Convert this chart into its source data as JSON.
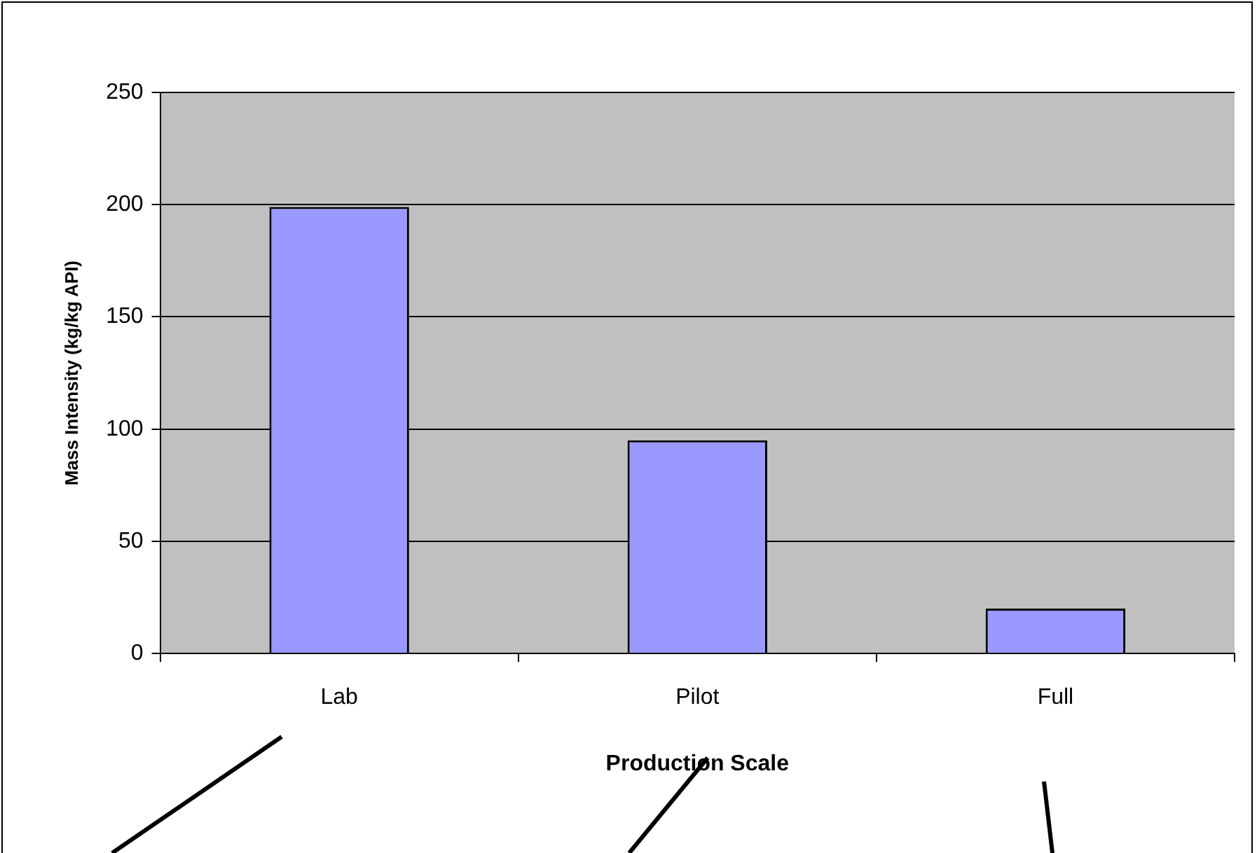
{
  "chart_data": {
    "type": "bar",
    "xlabel": "Production Scale",
    "ylabel": "Mass Intensity (kg/kg API)",
    "categories": [
      "Lab",
      "Pilot",
      "Full"
    ],
    "values": [
      199,
      95,
      20
    ],
    "color": "#9999ff",
    "ylim": [
      0,
      250
    ],
    "yticks": [
      0,
      50,
      100,
      150,
      200,
      250
    ],
    "grid": "y",
    "legend": false
  }
}
